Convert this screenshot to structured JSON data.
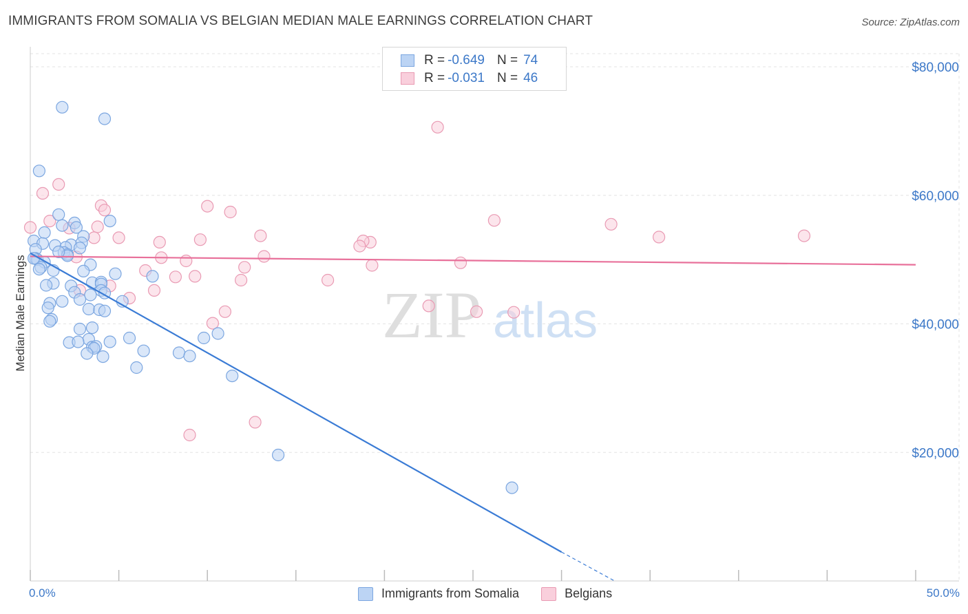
{
  "header": {
    "title": "IMMIGRANTS FROM SOMALIA VS BELGIAN MEDIAN MALE EARNINGS CORRELATION CHART",
    "source": "Source: ZipAtlas.com"
  },
  "watermark": {
    "zip": "ZIP",
    "atlas": "atlas"
  },
  "colors": {
    "somalia_fill": "#bcd4f4",
    "somalia_stroke": "#7ba6e0",
    "somalia_line": "#3a7bd5",
    "belgians_fill": "#f9cfdc",
    "belgians_stroke": "#e99ab3",
    "belgians_line": "#e8709a",
    "accent_text": "#3c78c8"
  },
  "legend_top": [
    {
      "r_label": "R =",
      "r_value": "-0.649",
      "n_label": "N =",
      "n_value": "74"
    },
    {
      "r_label": "R =",
      "r_value": "-0.031",
      "n_label": "N =",
      "n_value": "46"
    }
  ],
  "legend_bottom": [
    "Immigrants from Somalia",
    "Belgians"
  ],
  "chart_data": {
    "type": "scatter",
    "title": "IMMIGRANTS FROM SOMALIA VS BELGIAN MEDIAN MALE EARNINGS CORRELATION CHART",
    "xlabel": "",
    "ylabel": "Median Male Earnings",
    "xlim": [
      0,
      50
    ],
    "ylim": [
      0,
      80000
    ],
    "x_tick_labels": [
      "0.0%",
      "50.0%"
    ],
    "y_ticks": [
      20000,
      40000,
      60000,
      80000
    ],
    "y_tick_labels": [
      "$20,000",
      "$40,000",
      "$60,000",
      "$80,000"
    ],
    "grid": true,
    "legend_position": "bottom-center",
    "series": [
      {
        "name": "Immigrants from Somalia",
        "r": -0.649,
        "n": 74,
        "trend": {
          "x": [
            0.0,
            30.0
          ],
          "y": [
            51000,
            4500
          ],
          "dashed_to": [
            33.0,
            0
          ]
        },
        "points": [
          [
            1.8,
            73700
          ],
          [
            4.2,
            71900
          ],
          [
            0.5,
            63800
          ],
          [
            1.6,
            57000
          ],
          [
            4.5,
            56000
          ],
          [
            2.5,
            55700
          ],
          [
            1.8,
            55300
          ],
          [
            2.6,
            55000
          ],
          [
            0.8,
            54200
          ],
          [
            3.0,
            53600
          ],
          [
            0.2,
            52900
          ],
          [
            0.7,
            52500
          ],
          [
            1.4,
            52200
          ],
          [
            2.3,
            52300
          ],
          [
            2.9,
            52600
          ],
          [
            2.0,
            51900
          ],
          [
            2.8,
            51800
          ],
          [
            0.3,
            51600
          ],
          [
            1.9,
            51100
          ],
          [
            2.1,
            50800
          ],
          [
            0.3,
            50200
          ],
          [
            2.1,
            50600
          ],
          [
            0.4,
            50000
          ],
          [
            0.8,
            49600
          ],
          [
            3.4,
            49200
          ],
          [
            0.6,
            48800
          ],
          [
            0.5,
            48500
          ],
          [
            1.3,
            48300
          ],
          [
            3.0,
            48200
          ],
          [
            4.8,
            47800
          ],
          [
            6.9,
            47400
          ],
          [
            1.3,
            46300
          ],
          [
            0.9,
            46000
          ],
          [
            3.5,
            46400
          ],
          [
            4.0,
            46500
          ],
          [
            4.0,
            46200
          ],
          [
            2.3,
            45900
          ],
          [
            2.5,
            44900
          ],
          [
            3.4,
            44500
          ],
          [
            4.0,
            45200
          ],
          [
            4.2,
            44800
          ],
          [
            2.8,
            43800
          ],
          [
            1.8,
            43500
          ],
          [
            1.1,
            43200
          ],
          [
            5.2,
            43500
          ],
          [
            1.0,
            42500
          ],
          [
            3.3,
            42300
          ],
          [
            3.9,
            42200
          ],
          [
            4.2,
            42000
          ],
          [
            1.2,
            40700
          ],
          [
            1.1,
            40400
          ],
          [
            2.8,
            39200
          ],
          [
            3.5,
            39400
          ],
          [
            10.6,
            38500
          ],
          [
            5.6,
            37800
          ],
          [
            2.2,
            37100
          ],
          [
            3.3,
            37600
          ],
          [
            2.7,
            37200
          ],
          [
            4.5,
            37200
          ],
          [
            9.8,
            37800
          ],
          [
            3.5,
            36400
          ],
          [
            3.7,
            36500
          ],
          [
            3.6,
            36200
          ],
          [
            6.4,
            35800
          ],
          [
            8.4,
            35500
          ],
          [
            3.2,
            35400
          ],
          [
            9.0,
            35000
          ],
          [
            4.1,
            34900
          ],
          [
            6.0,
            33200
          ],
          [
            11.4,
            31900
          ],
          [
            14.0,
            19600
          ],
          [
            27.2,
            14500
          ],
          [
            0.2,
            50200
          ],
          [
            1.6,
            51200
          ]
        ]
      },
      {
        "name": "Belgians",
        "r": -0.031,
        "n": 46,
        "trend": {
          "x": [
            0.0,
            50.0
          ],
          "y": [
            50500,
            49200
          ]
        },
        "points": [
          [
            0.0,
            55000
          ],
          [
            23.0,
            70600
          ],
          [
            1.6,
            61700
          ],
          [
            0.7,
            60300
          ],
          [
            4.0,
            58400
          ],
          [
            10.0,
            58300
          ],
          [
            11.3,
            57400
          ],
          [
            4.2,
            57700
          ],
          [
            1.1,
            56000
          ],
          [
            26.2,
            56100
          ],
          [
            32.8,
            55500
          ],
          [
            2.2,
            54900
          ],
          [
            3.8,
            55100
          ],
          [
            43.7,
            53700
          ],
          [
            35.5,
            53500
          ],
          [
            13.0,
            53700
          ],
          [
            3.6,
            53400
          ],
          [
            5.0,
            53400
          ],
          [
            9.6,
            53100
          ],
          [
            19.2,
            52700
          ],
          [
            7.3,
            52700
          ],
          [
            18.8,
            52900
          ],
          [
            18.6,
            52100
          ],
          [
            7.4,
            50300
          ],
          [
            8.8,
            49800
          ],
          [
            13.2,
            50500
          ],
          [
            2.6,
            50400
          ],
          [
            24.3,
            49500
          ],
          [
            19.3,
            49100
          ],
          [
            12.1,
            48800
          ],
          [
            6.5,
            48300
          ],
          [
            8.2,
            47300
          ],
          [
            9.3,
            47400
          ],
          [
            11.9,
            46800
          ],
          [
            16.8,
            46800
          ],
          [
            4.5,
            45900
          ],
          [
            2.8,
            45200
          ],
          [
            7.0,
            45200
          ],
          [
            5.6,
            44000
          ],
          [
            22.5,
            42800
          ],
          [
            11.0,
            41900
          ],
          [
            25.2,
            41900
          ],
          [
            27.3,
            41800
          ],
          [
            10.3,
            40100
          ],
          [
            12.7,
            24700
          ],
          [
            9.0,
            22700
          ]
        ]
      }
    ]
  }
}
